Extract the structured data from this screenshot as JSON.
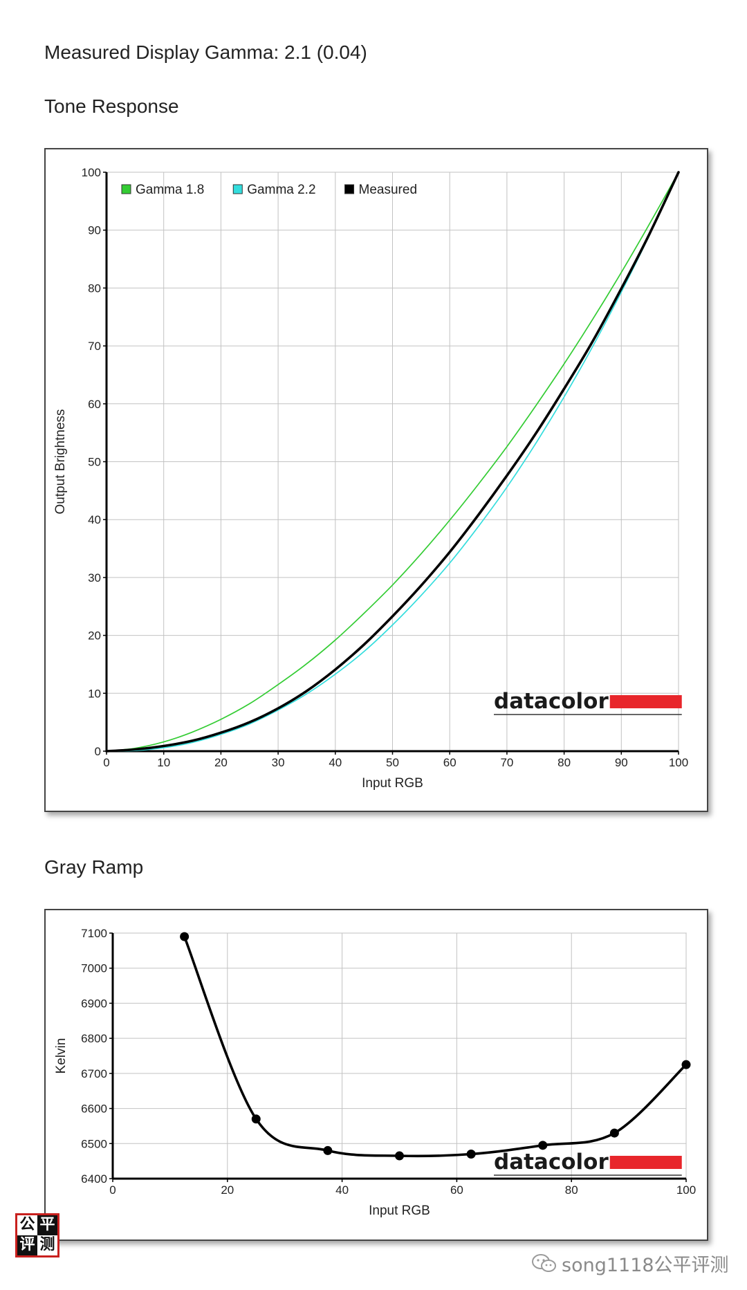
{
  "page": {
    "gamma_heading": "Measured Display Gamma: 2.1 (0.04)",
    "tone_heading": "Tone Response",
    "gray_heading": "Gray Ramp"
  },
  "chart_data": [
    {
      "type": "line",
      "name": "Tone Response",
      "xlabel": "Input RGB",
      "ylabel": "Output Brightness",
      "xlim": [
        0,
        100
      ],
      "ylim": [
        0,
        100
      ],
      "xticks": [
        0,
        10,
        20,
        30,
        40,
        50,
        60,
        70,
        80,
        90,
        100
      ],
      "yticks": [
        0,
        10,
        20,
        30,
        40,
        50,
        60,
        70,
        80,
        90,
        100
      ],
      "grid": true,
      "legend_position": "top-left",
      "series": [
        {
          "name": "Gamma 1.8",
          "color": "#33cc33",
          "gamma": 1.8,
          "x": [
            0,
            5,
            10,
            15,
            20,
            25,
            30,
            35,
            40,
            45,
            50,
            55,
            60,
            65,
            70,
            75,
            80,
            85,
            90,
            95,
            100
          ],
          "y": [
            0,
            0.5,
            1.6,
            3.3,
            5.5,
            8.2,
            11.5,
            15.1,
            19.2,
            23.8,
            28.7,
            34.1,
            39.9,
            46.1,
            52.6,
            59.6,
            66.9,
            74.6,
            82.7,
            91.2,
            100
          ]
        },
        {
          "name": "Gamma 2.2",
          "color": "#33dddd",
          "gamma": 2.2,
          "x": [
            0,
            5,
            10,
            15,
            20,
            25,
            30,
            35,
            40,
            45,
            50,
            55,
            60,
            65,
            70,
            75,
            80,
            85,
            90,
            95,
            100
          ],
          "y": [
            0,
            0.1,
            0.6,
            1.5,
            2.9,
            4.7,
            7.1,
            9.9,
            13.3,
            17.2,
            21.8,
            26.9,
            32.5,
            38.8,
            45.6,
            53.1,
            61.2,
            69.9,
            79.3,
            89.3,
            100
          ]
        },
        {
          "name": "Measured",
          "color": "#000000",
          "gamma": 2.1,
          "x": [
            0,
            5,
            10,
            15,
            20,
            25,
            30,
            35,
            40,
            45,
            50,
            55,
            60,
            65,
            70,
            75,
            80,
            85,
            90,
            95,
            100
          ],
          "y": [
            0,
            0.3,
            0.9,
            1.8,
            3.2,
            5.0,
            7.4,
            10.4,
            14.1,
            18.4,
            23.3,
            28.6,
            34.4,
            40.8,
            47.6,
            54.8,
            62.6,
            70.8,
            79.9,
            89.5,
            100
          ]
        }
      ]
    },
    {
      "type": "line",
      "name": "Gray Ramp",
      "xlabel": "Input RGB",
      "ylabel": "Kelvin",
      "xlim": [
        0,
        100
      ],
      "ylim": [
        6400,
        7100
      ],
      "xticks": [
        0,
        20,
        40,
        60,
        80,
        100
      ],
      "yticks": [
        6400,
        6500,
        6600,
        6700,
        6800,
        6900,
        7000,
        7100
      ],
      "grid": true,
      "series": [
        {
          "name": "",
          "color": "#000000",
          "x": [
            12.5,
            25,
            37.5,
            50,
            62.5,
            75,
            87.5,
            100
          ],
          "y": [
            7090,
            6570,
            6480,
            6465,
            6470,
            6495,
            6530,
            6725
          ]
        }
      ]
    }
  ],
  "brand": {
    "name": "datacolor",
    "bar_color": "#e8262b"
  },
  "stamp": {
    "chars": [
      "公",
      "平",
      "评",
      "测"
    ]
  },
  "watermark": {
    "text": "song1118公平评测",
    "icon": "wechat-icon"
  }
}
